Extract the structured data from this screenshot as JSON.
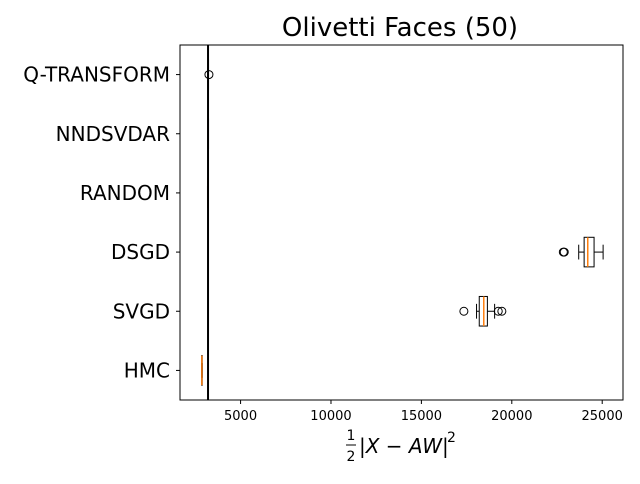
{
  "chart_data": {
    "type": "boxplot",
    "orientation": "horizontal",
    "title": "Olivetti Faces (50)",
    "xlabel": {
      "fraction_numerator": "1",
      "fraction_denominator": "2",
      "expression": "|X − AW|",
      "exponent": "2"
    },
    "ylabel": "",
    "xlim": [
      1650,
      26150
    ],
    "xticks": [
      5000,
      10000,
      15000,
      20000,
      25000
    ],
    "xtick_labels": [
      "5000",
      "10000",
      "15000",
      "20000",
      "25000"
    ],
    "categories": [
      "HMC",
      "SVGD",
      "DSGD",
      "RANDOM",
      "NNDSVDAR",
      "Q-TRANSFORM"
    ],
    "reference_line": {
      "x": 3200,
      "color": "#000000"
    },
    "median_color": "#ff7f0e",
    "boxes": [
      {
        "label": "HMC",
        "whislo": 2840,
        "q1": 2850,
        "med": 2860,
        "q3": 2870,
        "whishi": 2880,
        "fliers": []
      },
      {
        "label": "SVGD",
        "whislo": 18050,
        "q1": 18200,
        "med": 18450,
        "q3": 18650,
        "whishi": 19050,
        "fliers": [
          17350,
          19250,
          19450
        ]
      },
      {
        "label": "DSGD",
        "whislo": 23700,
        "q1": 24000,
        "med": 24200,
        "q3": 24550,
        "whishi": 25050,
        "fliers": [
          22850,
          22900
        ]
      },
      {
        "label": "RANDOM",
        "whislo": 3170,
        "q1": 3180,
        "med": 3190,
        "q3": 3200,
        "whishi": 3210,
        "fliers": []
      },
      {
        "label": "NNDSVDAR",
        "whislo": 3200,
        "q1": 3200,
        "med": 3200,
        "q3": 3200,
        "whishi": 3200,
        "fliers": []
      },
      {
        "label": "Q-TRANSFORM",
        "whislo": 3190,
        "q1": 3200,
        "med": 3205,
        "q3": 3210,
        "whishi": 3220,
        "fliers": [
          3250
        ]
      }
    ],
    "grid": false,
    "legend": "none"
  }
}
